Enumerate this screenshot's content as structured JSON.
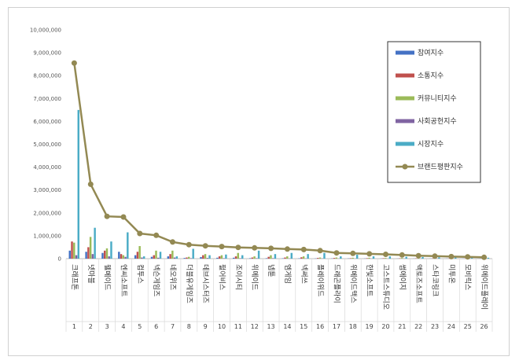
{
  "chart_data": {
    "type": "bar",
    "yticks": [
      "0",
      "1,000,000",
      "2,000,000",
      "3,000,000",
      "4,000,000",
      "5,000,000",
      "6,000,000",
      "7,000,000",
      "8,000,000",
      "9,000,000",
      "10,000,000"
    ],
    "ylim": [
      0,
      10000000
    ],
    "categories": [
      "크래프톤",
      "넷마블",
      "웰메이드",
      "엔씨소프트",
      "컴투스",
      "넥슨게임즈",
      "네오위즈",
      "더블유게임즈",
      "데브시스터즈",
      "펄어비스",
      "조이시티",
      "위메이드",
      "넵튠",
      "엠게임",
      "넥써쓰",
      "플레이위드",
      "드래곤플라이",
      "위메이드맥스",
      "한빛소프트",
      "고스트스튜디오",
      "썸에이지",
      "액토즈소프트",
      "스타코링크",
      "미투온",
      "모비릭스",
      "위메이드플레이"
    ],
    "ranks": [
      "1",
      "2",
      "3",
      "4",
      "5",
      "6",
      "7",
      "8",
      "9",
      "10",
      "11",
      "12",
      "13",
      "14",
      "15",
      "16",
      "17",
      "18",
      "19",
      "20",
      "21",
      "22",
      "23",
      "24",
      "25",
      "26"
    ],
    "series": [
      {
        "name": "참여지수",
        "color": "#4472c4",
        "values": [
          350000,
          300000,
          250000,
          300000,
          150000,
          80000,
          100000,
          30000,
          70000,
          40000,
          40000,
          20000,
          20000,
          15000,
          15000,
          10000,
          10000,
          10000,
          8000,
          8000,
          5000,
          5000,
          5000,
          5000,
          5000,
          3000
        ]
      },
      {
        "name": "소통지수",
        "color": "#c0504d",
        "values": [
          750000,
          500000,
          350000,
          200000,
          300000,
          150000,
          200000,
          50000,
          150000,
          100000,
          100000,
          50000,
          80000,
          50000,
          60000,
          30000,
          30000,
          20000,
          20000,
          20000,
          15000,
          15000,
          10000,
          10000,
          10000,
          5000
        ]
      },
      {
        "name": "커뮤니티지수",
        "color": "#9bbb59",
        "values": [
          700000,
          950000,
          450000,
          150000,
          550000,
          350000,
          350000,
          80000,
          200000,
          150000,
          250000,
          100000,
          150000,
          100000,
          100000,
          50000,
          50000,
          40000,
          40000,
          30000,
          30000,
          30000,
          20000,
          20000,
          20000,
          10000
        ]
      },
      {
        "name": "사회공헌지수",
        "color": "#8064a2",
        "values": [
          150000,
          200000,
          100000,
          80000,
          50000,
          40000,
          50000,
          20000,
          30000,
          20000,
          20000,
          20000,
          20000,
          10000,
          10000,
          10000,
          5000,
          5000,
          5000,
          5000,
          5000,
          5000,
          5000,
          3000,
          3000,
          2000
        ]
      },
      {
        "name": "시장지수",
        "color": "#4bacc6",
        "values": [
          6500000,
          1350000,
          750000,
          1150000,
          100000,
          300000,
          100000,
          430000,
          150000,
          180000,
          150000,
          350000,
          200000,
          250000,
          200000,
          250000,
          100000,
          170000,
          100000,
          100000,
          80000,
          70000,
          60000,
          50000,
          50000,
          40000
        ]
      },
      {
        "name": "브랜드평판지수",
        "color": "#938953",
        "type": "line",
        "values": [
          8550000,
          3250000,
          1850000,
          1820000,
          1100000,
          1020000,
          730000,
          610000,
          560000,
          530000,
          490000,
          470000,
          450000,
          420000,
          400000,
          350000,
          250000,
          230000,
          210000,
          190000,
          160000,
          130000,
          110000,
          90000,
          80000,
          60000
        ]
      }
    ]
  }
}
